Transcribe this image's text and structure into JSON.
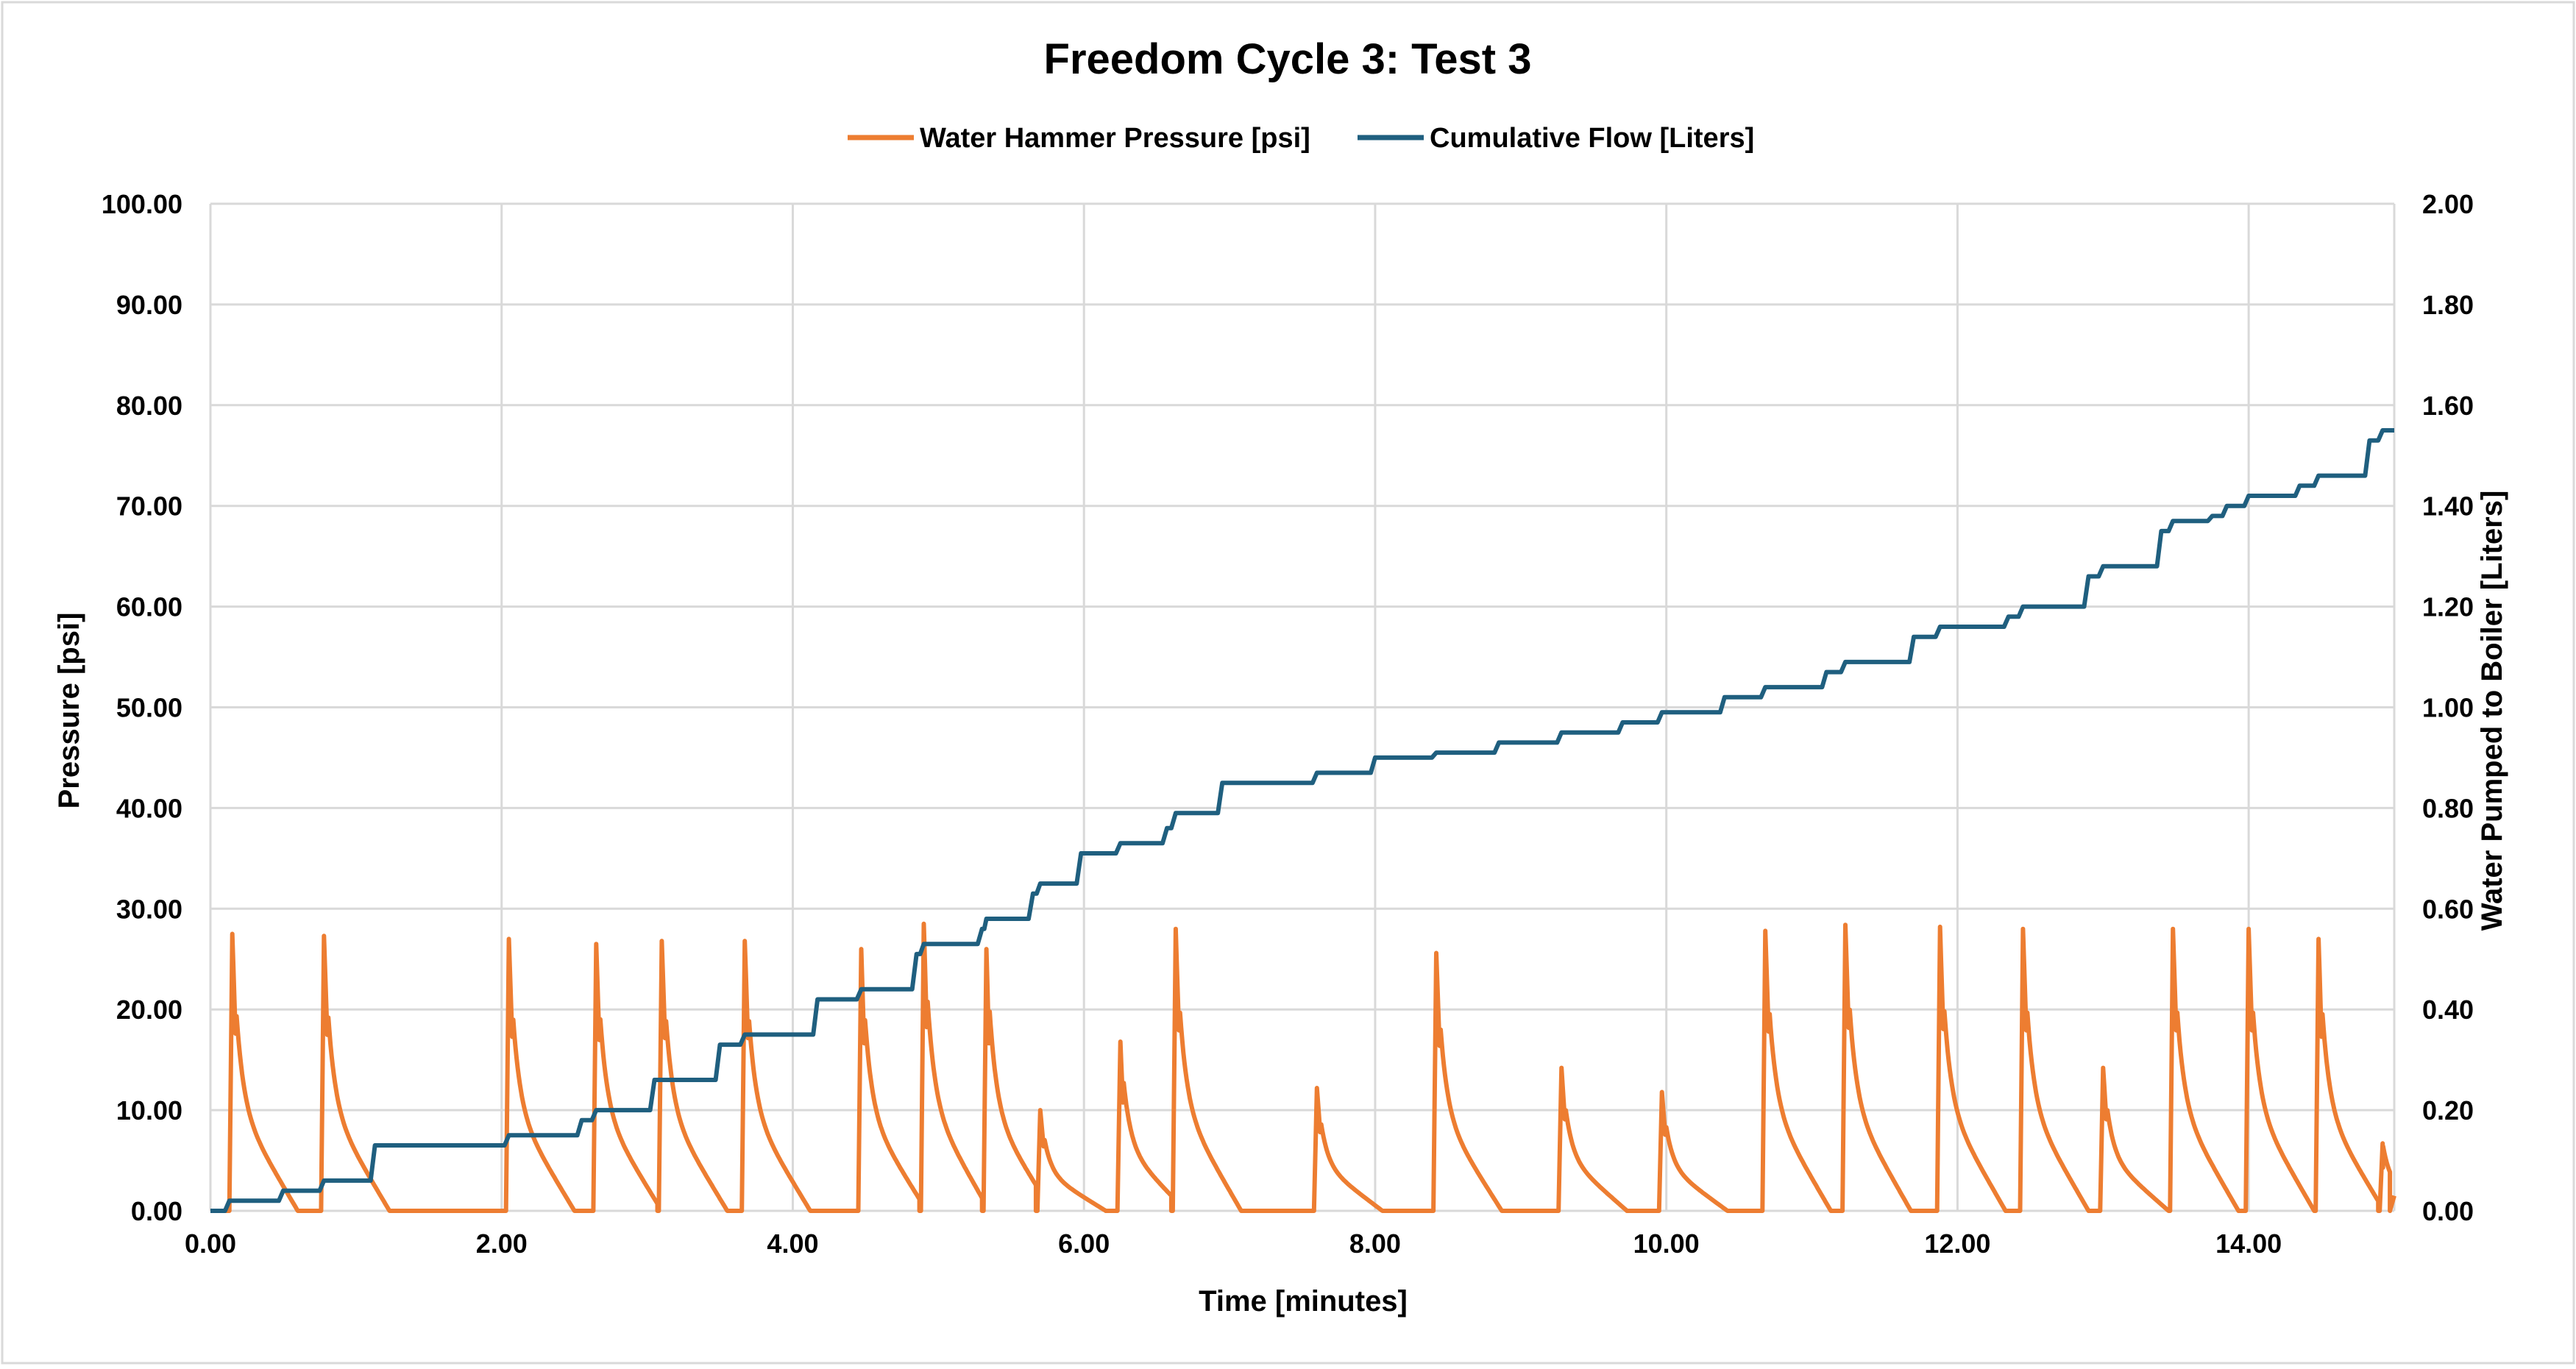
{
  "chart_data": {
    "type": "line",
    "title": "Freedom Cycle 3: Test 3",
    "xlabel": "Time [minutes]",
    "ylabel": "Pressure [psi]",
    "y2label": "Water Pumped to Boiler [Liters]",
    "xlim": [
      0,
      15
    ],
    "ylim": [
      0,
      100
    ],
    "y2lim": [
      0,
      2
    ],
    "xticks": [
      "0.00",
      "2.00",
      "4.00",
      "6.00",
      "8.00",
      "10.00",
      "12.00",
      "14.00"
    ],
    "yticks": [
      "0.00",
      "10.00",
      "20.00",
      "30.00",
      "40.00",
      "50.00",
      "60.00",
      "70.00",
      "80.00",
      "90.00",
      "100.00"
    ],
    "y2ticks": [
      "0.00",
      "0.20",
      "0.40",
      "0.60",
      "0.80",
      "1.00",
      "1.20",
      "1.40",
      "1.60",
      "1.80",
      "2.00"
    ],
    "grid": true,
    "legend_position": "top",
    "series": [
      {
        "name": "Water Hammer Pressure [psi]",
        "axis": "left",
        "color": "#ED7D31",
        "peaks": [
          {
            "t": 0.15,
            "p": 27.5
          },
          {
            "t": 0.78,
            "p": 27.3
          },
          {
            "t": 2.05,
            "p": 27.0
          },
          {
            "t": 2.65,
            "p": 26.5
          },
          {
            "t": 3.1,
            "p": 26.8
          },
          {
            "t": 3.67,
            "p": 26.8
          },
          {
            "t": 4.47,
            "p": 26.0
          },
          {
            "t": 4.9,
            "p": 28.5
          },
          {
            "t": 5.33,
            "p": 26.0
          },
          {
            "t": 5.7,
            "p": 10.0
          },
          {
            "t": 6.25,
            "p": 16.8
          },
          {
            "t": 6.63,
            "p": 28.0
          },
          {
            "t": 7.6,
            "p": 12.2
          },
          {
            "t": 8.42,
            "p": 25.6
          },
          {
            "t": 9.28,
            "p": 14.2
          },
          {
            "t": 9.97,
            "p": 11.8
          },
          {
            "t": 10.68,
            "p": 27.8
          },
          {
            "t": 11.23,
            "p": 28.4
          },
          {
            "t": 11.88,
            "p": 28.2
          },
          {
            "t": 12.45,
            "p": 28.0
          },
          {
            "t": 13.0,
            "p": 14.2
          },
          {
            "t": 13.48,
            "p": 28.0
          },
          {
            "t": 14.0,
            "p": 28.0
          },
          {
            "t": 14.48,
            "p": 27.0
          },
          {
            "t": 14.92,
            "p": 6.7
          }
        ]
      },
      {
        "name": "Cumulative Flow [Liters]",
        "axis": "right",
        "color": "#1F5F7F",
        "steps": [
          {
            "t": 0.0,
            "v": 0.0
          },
          {
            "t": 0.13,
            "v": 0.02
          },
          {
            "t": 0.5,
            "v": 0.04
          },
          {
            "t": 0.78,
            "v": 0.06
          },
          {
            "t": 1.13,
            "v": 0.13
          },
          {
            "t": 2.05,
            "v": 0.15
          },
          {
            "t": 2.55,
            "v": 0.18
          },
          {
            "t": 2.65,
            "v": 0.2
          },
          {
            "t": 3.05,
            "v": 0.26
          },
          {
            "t": 3.5,
            "v": 0.33
          },
          {
            "t": 3.67,
            "v": 0.35
          },
          {
            "t": 4.17,
            "v": 0.42
          },
          {
            "t": 4.47,
            "v": 0.44
          },
          {
            "t": 4.85,
            "v": 0.51
          },
          {
            "t": 4.9,
            "v": 0.53
          },
          {
            "t": 5.3,
            "v": 0.56
          },
          {
            "t": 5.33,
            "v": 0.58
          },
          {
            "t": 5.65,
            "v": 0.63
          },
          {
            "t": 5.7,
            "v": 0.65
          },
          {
            "t": 5.98,
            "v": 0.71
          },
          {
            "t": 6.25,
            "v": 0.73
          },
          {
            "t": 6.57,
            "v": 0.76
          },
          {
            "t": 6.63,
            "v": 0.79
          },
          {
            "t": 6.95,
            "v": 0.85
          },
          {
            "t": 7.6,
            "v": 0.87
          },
          {
            "t": 8.0,
            "v": 0.9
          },
          {
            "t": 8.42,
            "v": 0.91
          },
          {
            "t": 8.85,
            "v": 0.93
          },
          {
            "t": 9.28,
            "v": 0.95
          },
          {
            "t": 9.7,
            "v": 0.97
          },
          {
            "t": 9.97,
            "v": 0.99
          },
          {
            "t": 10.4,
            "v": 1.02
          },
          {
            "t": 10.68,
            "v": 1.04
          },
          {
            "t": 11.1,
            "v": 1.07
          },
          {
            "t": 11.23,
            "v": 1.09
          },
          {
            "t": 11.7,
            "v": 1.14
          },
          {
            "t": 11.88,
            "v": 1.16
          },
          {
            "t": 12.35,
            "v": 1.18
          },
          {
            "t": 12.45,
            "v": 1.2
          },
          {
            "t": 12.9,
            "v": 1.26
          },
          {
            "t": 13.0,
            "v": 1.28
          },
          {
            "t": 13.4,
            "v": 1.35
          },
          {
            "t": 13.48,
            "v": 1.37
          },
          {
            "t": 13.75,
            "v": 1.38
          },
          {
            "t": 13.85,
            "v": 1.4
          },
          {
            "t": 14.0,
            "v": 1.42
          },
          {
            "t": 14.35,
            "v": 1.44
          },
          {
            "t": 14.48,
            "v": 1.46
          },
          {
            "t": 14.83,
            "v": 1.53
          },
          {
            "t": 14.92,
            "v": 1.55
          },
          {
            "t": 15.0,
            "v": 1.55
          }
        ]
      }
    ]
  }
}
